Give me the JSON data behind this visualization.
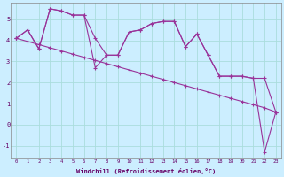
{
  "xlabel": "Windchill (Refroidissement éolien,°C)",
  "background_color": "#cceeff",
  "grid_color": "#aadddd",
  "line_color": "#993399",
  "xlim": [
    -0.5,
    23.5
  ],
  "ylim": [
    -1.6,
    5.8
  ],
  "xticks": [
    0,
    1,
    2,
    3,
    4,
    5,
    6,
    7,
    8,
    9,
    10,
    11,
    12,
    13,
    14,
    15,
    16,
    17,
    18,
    19,
    20,
    21,
    22,
    23
  ],
  "yticks": [
    -1,
    0,
    1,
    2,
    3,
    4,
    5
  ],
  "series1_x": [
    0,
    1,
    2,
    3,
    4,
    5,
    6,
    7,
    8,
    9,
    10,
    11,
    12,
    13,
    14,
    15,
    16,
    17,
    18,
    19,
    20,
    21,
    22,
    23
  ],
  "series1_y": [
    4.1,
    4.5,
    3.6,
    5.5,
    5.4,
    5.2,
    5.2,
    4.1,
    3.3,
    3.3,
    4.4,
    4.5,
    4.8,
    4.9,
    4.9,
    3.7,
    4.3,
    3.3,
    2.3,
    2.3,
    2.3,
    2.2,
    2.2,
    0.6
  ],
  "series2_x": [
    0,
    1,
    2,
    3,
    4,
    5,
    6,
    7,
    8,
    9,
    10,
    11,
    12,
    13,
    14,
    15,
    16,
    17,
    18,
    19,
    20,
    21,
    22,
    23
  ],
  "series2_y": [
    4.1,
    4.5,
    3.6,
    5.5,
    5.4,
    5.2,
    5.2,
    2.7,
    3.3,
    3.3,
    4.4,
    4.5,
    4.8,
    4.9,
    4.9,
    3.7,
    4.3,
    3.3,
    2.3,
    2.3,
    2.3,
    2.2,
    -1.3,
    0.6
  ],
  "series3_x": [
    0,
    1,
    2,
    3,
    4,
    5,
    6,
    7,
    8,
    9,
    10,
    11,
    12,
    13,
    14,
    15,
    16,
    17,
    18,
    19,
    20,
    21,
    22,
    23
  ],
  "series3_y": [
    4.1,
    3.95,
    3.8,
    3.65,
    3.5,
    3.35,
    3.2,
    3.05,
    2.9,
    2.75,
    2.6,
    2.45,
    2.3,
    2.15,
    2.0,
    1.85,
    1.7,
    1.55,
    1.4,
    1.25,
    1.1,
    0.95,
    0.8,
    0.6
  ]
}
